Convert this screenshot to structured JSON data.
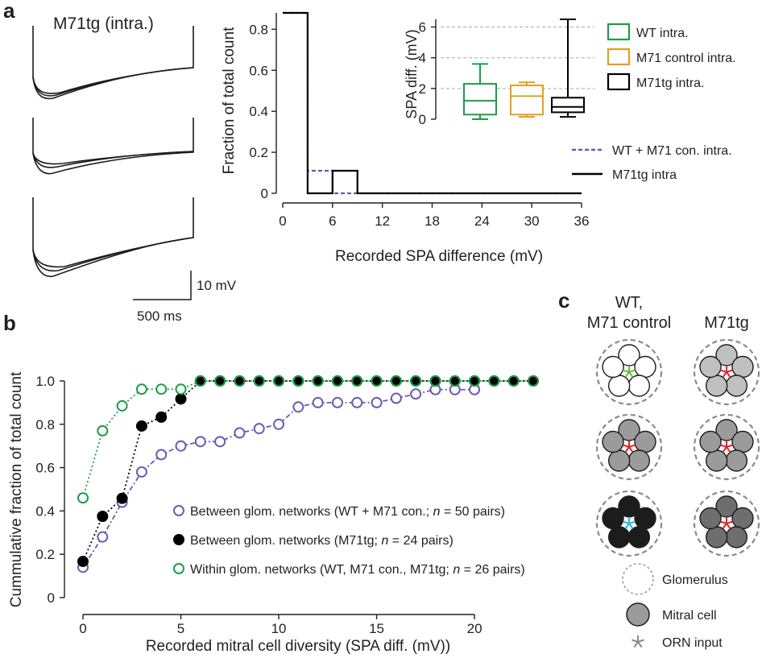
{
  "panel_labels": {
    "a": "a",
    "b": "b",
    "c": "c"
  },
  "chart_data": [
    {
      "panel": "a",
      "type": "line",
      "title": "M71tg (intra.)",
      "scale_bar": {
        "voltage": "10 mV",
        "time": "500 ms"
      }
    },
    {
      "panel": "a",
      "type": "line",
      "xlabel": "Recorded SPA difference (mV)",
      "ylabel": "Fraction of total count",
      "xlim": [
        0,
        36
      ],
      "ylim": [
        0,
        0.88
      ],
      "xticks": [
        "0",
        "6",
        "12",
        "18",
        "24",
        "30",
        "36"
      ],
      "yticks": [
        "0",
        "0.2",
        "0.4",
        "0.6",
        "0.8"
      ],
      "series": [
        {
          "name": "WT + M71 con. intra.",
          "color": "#6b5ab5",
          "style": "dashed",
          "bins": [
            [
              0,
              3,
              0.88
            ],
            [
              3,
              6,
              0.11
            ],
            [
              6,
              9,
              0
            ],
            [
              9,
              36,
              0
            ]
          ]
        },
        {
          "name": "M71tg intra",
          "color": "#000000",
          "style": "solid",
          "bins": [
            [
              0,
              3,
              0.88
            ],
            [
              3,
              6,
              0
            ],
            [
              6,
              9,
              0.11
            ],
            [
              9,
              36,
              0
            ]
          ]
        }
      ]
    },
    {
      "panel": "a-inset",
      "type": "box",
      "ylabel": "SPA diff. (mV)",
      "ylim": [
        0,
        6.5
      ],
      "yticks": [
        "0",
        "2",
        "4",
        "6"
      ],
      "boxes": [
        {
          "name": "WT intra.",
          "color": "#1a9e48",
          "min": 0,
          "q1": 0.3,
          "median": 1.2,
          "q3": 2.3,
          "max": 3.6
        },
        {
          "name": "M71 control intra.",
          "color": "#e1a023",
          "min": 0.15,
          "q1": 0.3,
          "median": 1.5,
          "q3": 2.2,
          "max": 2.4
        },
        {
          "name": "M71tg intra.",
          "color": "#000000",
          "min": 0.15,
          "q1": 0.45,
          "median": 0.8,
          "q3": 1.4,
          "max": 6.5
        }
      ]
    },
    {
      "panel": "b",
      "type": "scatter",
      "xlabel": "Recorded mitral cell diversity (SPA diff. (mV))",
      "ylabel": "Cummulative fraction of total count",
      "xlim": [
        0,
        23
      ],
      "ylim": [
        0,
        1.0
      ],
      "xticks": [
        "0",
        "5",
        "10",
        "15",
        "20"
      ],
      "yticks": [
        "0",
        "0.2",
        "0.4",
        "0.6",
        "0.8",
        "1.0"
      ],
      "series": [
        {
          "name_parts": [
            "Between glom. networks (WT + M71 con.; ",
            "n",
            " = 50 pairs)"
          ],
          "color": "#6b5ab5",
          "marker": "open",
          "line": "dashdot",
          "x": [
            0,
            1,
            2,
            3,
            4,
            5,
            6,
            7,
            8,
            9,
            10,
            11,
            12,
            13,
            14,
            15,
            16,
            17,
            18,
            19,
            20
          ],
          "y": [
            0.14,
            0.28,
            0.44,
            0.58,
            0.66,
            0.7,
            0.72,
            0.72,
            0.76,
            0.78,
            0.8,
            0.88,
            0.9,
            0.9,
            0.9,
            0.9,
            0.92,
            0.94,
            0.96,
            0.96,
            0.96
          ]
        },
        {
          "name_parts": [
            "Between glom. networks (M71tg; ",
            "n",
            " = 24 pairs)"
          ],
          "color": "#000000",
          "marker": "filled",
          "line": "dotted",
          "x": [
            0,
            1,
            2,
            3,
            4,
            5,
            6,
            7,
            8,
            9,
            10,
            11,
            12,
            13,
            14,
            15,
            16,
            17,
            18,
            19,
            20,
            21,
            22,
            23
          ],
          "y": [
            0.167,
            0.375,
            0.458,
            0.792,
            0.833,
            0.917,
            1,
            1,
            1,
            1,
            1,
            1,
            1,
            1,
            1,
            1,
            1,
            1,
            1,
            1,
            1,
            1,
            1,
            1
          ]
        },
        {
          "name_parts": [
            "Within glom. networks (WT, M71 con., M71tg; ",
            "n",
            " = 26 pairs)"
          ],
          "color": "#1a9e48",
          "marker": "open",
          "line": "dotted",
          "x": [
            0,
            1,
            2,
            3,
            4,
            5,
            6,
            7,
            8,
            9,
            10,
            11,
            12,
            13,
            14,
            15,
            16,
            17,
            18,
            19,
            20,
            21,
            22,
            23
          ],
          "y": [
            0.46,
            0.77,
            0.885,
            0.962,
            0.962,
            0.962,
            1,
            1,
            1,
            1,
            1,
            1,
            1,
            1,
            1,
            1,
            1,
            1,
            1,
            1,
            1,
            1,
            1,
            1
          ]
        }
      ]
    },
    {
      "panel": "c",
      "type": "diagram",
      "column_titles": [
        [
          "WT,",
          "M71 control"
        ],
        [
          "M71tg"
        ]
      ],
      "glomeruli": [
        {
          "column": 0,
          "row": 0,
          "cell_color": "#ffffff",
          "orn_color": "#6dbb3b"
        },
        {
          "column": 0,
          "row": 1,
          "cell_color": "#9b9b9b",
          "orn_color": "#e0242a"
        },
        {
          "column": 0,
          "row": 2,
          "cell_color": "#1c1c1c",
          "orn_color": "#27b4e3"
        },
        {
          "column": 1,
          "row": 0,
          "cell_color": "#c0c0c0",
          "orn_color": "#e0242a"
        },
        {
          "column": 1,
          "row": 1,
          "cell_color": "#9b9b9b",
          "orn_color": "#e0242a"
        },
        {
          "column": 1,
          "row": 2,
          "cell_color": "#6e6e6e",
          "orn_color": "#e0242a"
        }
      ],
      "legend": [
        "Glomerulus",
        "Mitral cell",
        "ORN input"
      ]
    }
  ]
}
